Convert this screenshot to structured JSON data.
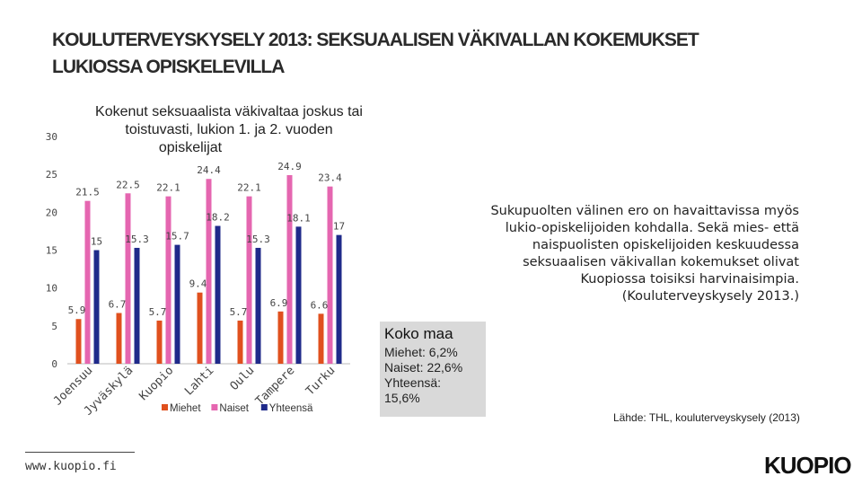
{
  "page": {
    "title_line1": "KOULUTERVEYSKYSELY 2013: SEKSUAALISEN VÄKIVALLAN KOKEMUKSET",
    "title_line2": "LUKIOSSA OPISKELEVILLA",
    "side_text": "Sukupuolten välinen ero on havaittavissa myös lukio-opiskelijoiden kohdalla. Sekä mies- että naispuolisten opiskelijoiden keskuudessa seksuaalisen väkivallan kokemukset olivat Kuopiossa toisiksi harvinaisimpia. (Kouluterveyskysely 2013.)",
    "koko_maa_title": "Koko maa",
    "koko_maa_lines": [
      "Miehet: 6,2%",
      "Naiset: 22,6%",
      "Yhteensä:",
      "15,6%"
    ],
    "source": "Lähde: THL, kouluterveyskysely (2013)",
    "footer_url": "www.kuopio.fi",
    "logo": "KUOPIO"
  },
  "chart_data": {
    "type": "bar",
    "title_lines": [
      "Kokenut seksuaalista väkivaltaa joskus tai",
      "toistuvasti, lukion 1. ja 2. vuoden",
      "opiskelijat"
    ],
    "categories": [
      "Joensuu",
      "Jyväskylä",
      "Kuopio",
      "Lahti",
      "Oulu",
      "Tampere",
      "Turku"
    ],
    "series": [
      {
        "name": "Miehet",
        "values": [
          5.9,
          6.7,
          5.7,
          9.4,
          5.7,
          6.9,
          6.6
        ]
      },
      {
        "name": "Naiset",
        "values": [
          21.5,
          22.5,
          22.1,
          24.4,
          22.1,
          24.9,
          23.4
        ]
      },
      {
        "name": "Yhteensä",
        "values": [
          15,
          15.3,
          15.7,
          18.2,
          15.3,
          18.1,
          17
        ]
      }
    ],
    "colors": {
      "Miehet": "#e0501e",
      "Naiset": "#e566b0",
      "Yhteensä": "#1f2a8a"
    },
    "y_ticks": [
      0,
      5,
      10,
      15,
      20,
      25,
      30
    ],
    "ylim": [
      0,
      30
    ],
    "legend_position": "bottom",
    "grid": false
  }
}
